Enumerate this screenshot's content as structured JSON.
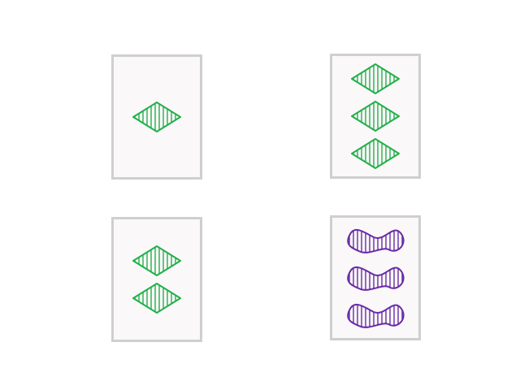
{
  "cards": [
    {
      "id": 1,
      "count": 1,
      "shape": "diamond",
      "shading": "striped",
      "color": "#22b04a"
    },
    {
      "id": 2,
      "count": 3,
      "shape": "diamond",
      "shading": "striped",
      "color": "#22b04a"
    },
    {
      "id": 3,
      "count": 2,
      "shape": "diamond",
      "shading": "striped",
      "color": "#22b04a"
    },
    {
      "id": 4,
      "count": 3,
      "shape": "squiggle",
      "shading": "striped",
      "color": "#6a2aa8"
    }
  ]
}
